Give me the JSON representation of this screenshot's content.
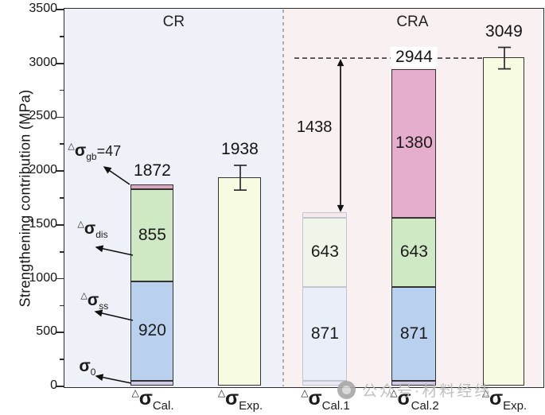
{
  "watermark": {
    "logo": "chat-bubble-icon",
    "text": "公众号·材料经纬"
  },
  "chart_data": {
    "type": "bar",
    "stacked": true,
    "title": "",
    "xlabel": "",
    "ylabel": "Strengthening contribution (MPa)",
    "ylim": [
      0,
      3500
    ],
    "ytick_step": 500,
    "yminor_step": 250,
    "grid": false,
    "legend": null,
    "regions": [
      {
        "label": "CR",
        "bg": "#eef1f7"
      },
      {
        "label": "CRA",
        "bg": "#f9f1f1"
      }
    ],
    "bars": [
      {
        "name": "cal-cr",
        "x_label": {
          "delta": "△",
          "sigma": "σ",
          "sub": "Cal."
        },
        "region": "CR",
        "total": 1872,
        "total_label": "1872",
        "border": "#333333",
        "segments": [
          {
            "name": "sigma-0",
            "value": 50,
            "label": "",
            "fill": "#d2cbe7"
          },
          {
            "name": "sigma-ss",
            "value": 920,
            "label": "920",
            "fill": "#b9d1ee"
          },
          {
            "name": "sigma-dis",
            "value": 855,
            "label": "855",
            "fill": "#cfe9c4"
          },
          {
            "name": "sigma-gb",
            "value": 47,
            "label": "",
            "fill": "#dda4bf"
          }
        ]
      },
      {
        "name": "exp-cr",
        "x_label": {
          "delta": "△",
          "sigma": "σ",
          "sub": "Exp."
        },
        "region": "CR",
        "total": 1938,
        "total_label": "1938",
        "error": 115,
        "border": "#333333",
        "segments": [
          {
            "name": "experimental",
            "value": 1938,
            "label": "",
            "fill": "#f7fbe2"
          }
        ]
      },
      {
        "name": "cal1-cra",
        "x_label": {
          "delta": "△",
          "sigma": "σ",
          "sub": "Cal.1"
        },
        "region": "CRA",
        "total": 1611,
        "total_label": "",
        "faded": true,
        "border": "#c1c6cf",
        "segments": [
          {
            "name": "sigma-0",
            "value": 50,
            "label": "",
            "fill": "#ebe9f5"
          },
          {
            "name": "sigma-ss",
            "value": 871,
            "label": "871",
            "fill": "#e9eef9"
          },
          {
            "name": "sigma-dis",
            "value": 643,
            "label": "643",
            "fill": "#eff5e8"
          },
          {
            "name": "sigma-gb",
            "value": 47,
            "label": "",
            "fill": "#f6e9ee"
          }
        ]
      },
      {
        "name": "cal2-cra",
        "x_label": {
          "delta": "△",
          "sigma": "σ",
          "sub": "Cal.2"
        },
        "region": "CRA",
        "total": 2944,
        "total_label": "2944",
        "border": "#333333",
        "segments": [
          {
            "name": "sigma-0",
            "value": 50,
            "label": "",
            "fill": "#d2cbe7"
          },
          {
            "name": "sigma-ss",
            "value": 871,
            "label": "871",
            "fill": "#b9d1ee"
          },
          {
            "name": "sigma-dis",
            "value": 643,
            "label": "643",
            "fill": "#cfe9c4"
          },
          {
            "name": "sigma-ppt",
            "value": 1380,
            "label": "1380",
            "fill": "#e5aecd"
          }
        ]
      },
      {
        "name": "exp-cra",
        "x_label": {
          "delta": "△",
          "sigma": "σ",
          "sub": "Exp."
        },
        "region": "CRA",
        "total": 3049,
        "total_label": "3049",
        "error": 100,
        "border": "#333333",
        "segments": [
          {
            "name": "experimental",
            "value": 3049,
            "label": "",
            "fill": "#f7fbe2"
          }
        ]
      }
    ],
    "annotations": {
      "dashed_level": 3049,
      "gap_arrow": {
        "label": "1438",
        "from_total": 1611,
        "to_value": 3049
      },
      "left_labels": [
        {
          "name": "sigma-gb",
          "delta": "△",
          "sigma": "σ",
          "sub": "gb",
          "suffix": "=47"
        },
        {
          "name": "sigma-dis",
          "delta": "△",
          "sigma": "σ",
          "sub": "dis",
          "suffix": ""
        },
        {
          "name": "sigma-ss",
          "delta": "△",
          "sigma": "σ",
          "sub": "ss",
          "suffix": ""
        },
        {
          "name": "sigma-0",
          "delta": "",
          "sigma": "σ",
          "sub": "0",
          "suffix": ""
        }
      ]
    },
    "colors": {
      "axis": "#2b2b2b",
      "divider": "#99a0aa",
      "arrow": "#111111",
      "text": "#1b1b1b"
    }
  }
}
